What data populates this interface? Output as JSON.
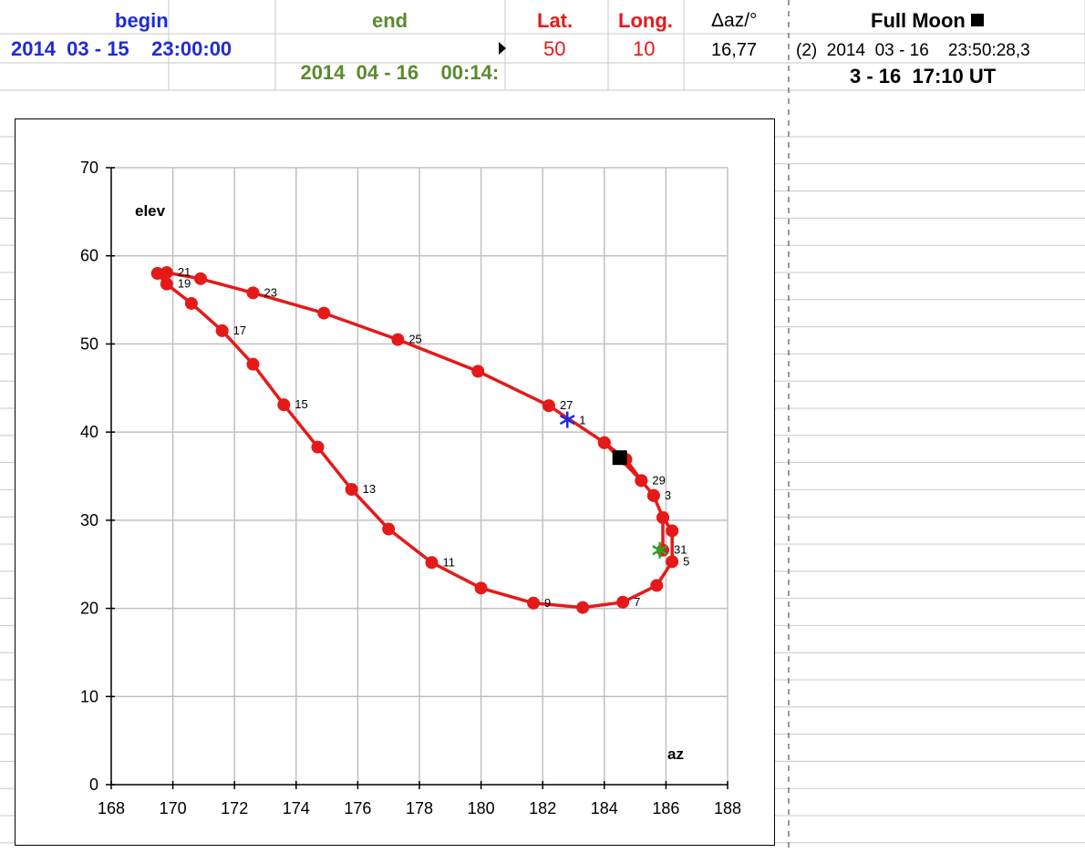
{
  "header": {
    "begin_label": "begin",
    "end_label": "end",
    "lat_label": "Lat.",
    "long_label": "Long.",
    "daz_label": "Δaz/°",
    "full_moon_label": "Full Moon",
    "begin_value": "2014  03 - 15    23:00:00",
    "end_value": "2014  04 - 16    00:14:",
    "lat_value": "50",
    "long_value": "10",
    "daz_value": "16,77",
    "full_moon_value": "(2)  2014  03 - 16    23:50:28,3",
    "ut_value": "3 - 16  17:10 UT"
  },
  "colors": {
    "begin": "#1f2bd6",
    "end": "#5b8a2e",
    "red": "#e61919",
    "grid": "#c0c0c0"
  },
  "chart_data": {
    "type": "line",
    "xlabel": "az",
    "ylabel": "elev",
    "xlim": [
      168,
      188
    ],
    "ylim": [
      0,
      70
    ],
    "xticks": [
      168,
      170,
      172,
      174,
      176,
      178,
      180,
      182,
      184,
      186,
      188
    ],
    "yticks": [
      0,
      10,
      20,
      30,
      40,
      50,
      60,
      70
    ],
    "grid": true,
    "series": [
      {
        "color": "#e61919",
        "points": [
          {
            "x": 184.0,
            "y": 38.8
          },
          {
            "x": 184.7,
            "y": 36.9
          },
          {
            "x": 185.2,
            "y": 34.5
          },
          {
            "x": 185.6,
            "y": 32.8,
            "label": "3"
          },
          {
            "x": 185.9,
            "y": 30.3
          },
          {
            "x": 186.2,
            "y": 28.8
          },
          {
            "x": 186.2,
            "y": 25.3,
            "label": "5"
          },
          {
            "x": 185.7,
            "y": 22.6
          },
          {
            "x": 184.6,
            "y": 20.7,
            "label": "7"
          },
          {
            "x": 183.3,
            "y": 20.1
          },
          {
            "x": 181.7,
            "y": 20.6,
            "label": "9"
          },
          {
            "x": 180.0,
            "y": 22.3
          },
          {
            "x": 178.4,
            "y": 25.2,
            "label": "11"
          },
          {
            "x": 177.0,
            "y": 29.0
          },
          {
            "x": 175.8,
            "y": 33.5,
            "label": "13"
          },
          {
            "x": 174.7,
            "y": 38.3
          },
          {
            "x": 173.6,
            "y": 43.1,
            "label": "15"
          },
          {
            "x": 172.6,
            "y": 47.7
          },
          {
            "x": 171.6,
            "y": 51.5,
            "label": "17"
          },
          {
            "x": 170.6,
            "y": 54.6
          },
          {
            "x": 169.8,
            "y": 56.8,
            "label": "19"
          },
          {
            "x": 169.5,
            "y": 58.0
          },
          {
            "x": 169.8,
            "y": 58.1,
            "label": "21"
          },
          {
            "x": 170.9,
            "y": 57.4
          },
          {
            "x": 172.6,
            "y": 55.8,
            "label": "23"
          },
          {
            "x": 174.9,
            "y": 53.5
          },
          {
            "x": 177.3,
            "y": 50.5,
            "label": "25"
          },
          {
            "x": 179.9,
            "y": 46.9
          },
          {
            "x": 182.2,
            "y": 43.0,
            "label": "27"
          },
          {
            "x": 184.0,
            "y": 38.8
          },
          {
            "x": 185.2,
            "y": 34.5,
            "label": "29"
          },
          {
            "x": 185.6,
            "y": 32.8
          },
          {
            "x": 185.9,
            "y": 30.3
          },
          {
            "x": 185.9,
            "y": 26.6,
            "label": "31"
          }
        ]
      }
    ],
    "markers": [
      {
        "type": "asterisk",
        "x": 182.8,
        "y": 41.4,
        "color": "#1f2bd6",
        "label": "1"
      },
      {
        "type": "asterisk",
        "x": 185.8,
        "y": 26.6,
        "color": "#22aa22"
      },
      {
        "type": "square",
        "x": 184.5,
        "y": 37.1,
        "color": "#000000"
      }
    ]
  }
}
